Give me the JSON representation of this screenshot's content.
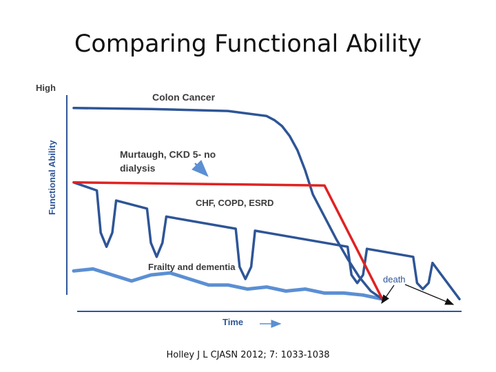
{
  "slide": {
    "title": "Comparing Functional Ability",
    "citation": "Holley J L CJASN 2012; 7: 1033-1038"
  },
  "chart_data": {
    "type": "line",
    "title": "Comparing Functional Ability",
    "xlabel": "Time",
    "ylabel": "Functional Ability",
    "ytick_labels": [
      "High"
    ],
    "xlim": [
      0,
      100
    ],
    "ylim": [
      0,
      100
    ],
    "grid": false,
    "series": [
      {
        "name": "Colon Cancer",
        "color": "#2e5597",
        "x": [
          0,
          20,
          40,
          50,
          52,
          54,
          56,
          58,
          60,
          62,
          65,
          68,
          71,
          74,
          77,
          80
        ],
        "y": [
          97,
          96.5,
          95.5,
          93,
          91,
          88,
          83,
          76,
          66,
          54,
          43,
          32,
          22,
          13,
          6,
          2
        ]
      },
      {
        "name": "Murtaugh, CKD 5- no dialysis",
        "color": "#e02222",
        "x": [
          0,
          65,
          80
        ],
        "y": [
          60,
          58.5,
          2
        ]
      },
      {
        "name": "CHF, COPD, ESRD",
        "color": "#2e5597",
        "x": [
          0,
          6,
          7,
          8.5,
          10,
          11,
          19,
          20,
          21.5,
          23,
          24,
          42,
          43,
          44.5,
          46,
          47,
          71,
          72,
          73.5,
          75,
          76,
          88,
          89,
          90.5,
          92,
          93,
          100
        ],
        "y": [
          60,
          56,
          35,
          28,
          35,
          51,
          47,
          30,
          23,
          30,
          43,
          37,
          18,
          12,
          18,
          36,
          28,
          14,
          10,
          14,
          27,
          23,
          10,
          7,
          10,
          20,
          2
        ]
      },
      {
        "name": "Frailty and dementia",
        "color": "#5b8fd3",
        "x": [
          0,
          5,
          10,
          15,
          20,
          25,
          30,
          35,
          40,
          45,
          50,
          55,
          60,
          65,
          70,
          75,
          80
        ],
        "y": [
          16,
          17,
          14,
          11,
          14,
          15,
          12,
          9,
          9,
          7,
          8,
          6,
          7,
          5,
          5,
          4,
          2
        ]
      }
    ],
    "annotations": [
      {
        "text": "death",
        "color": "#2e5597",
        "points_to": [
          "Murtaugh, CKD 5- no dialysis end",
          "CHF, COPD, ESRD end"
        ]
      }
    ],
    "colors": {
      "axis": "#2e5597",
      "label_text": "#3b3b3b",
      "arrow": "#5b8fd3"
    }
  }
}
